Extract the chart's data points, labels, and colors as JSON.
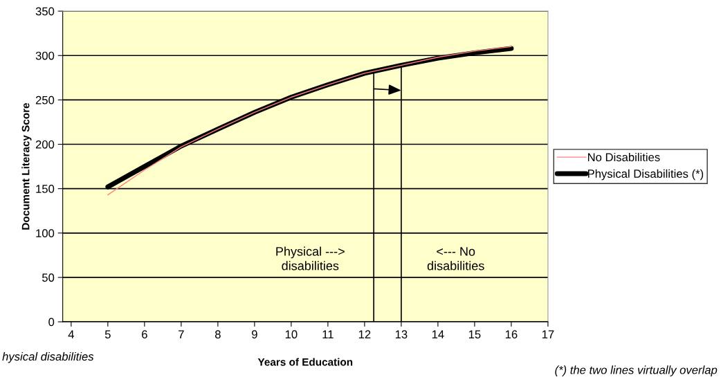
{
  "chart_data": {
    "type": "line",
    "xlabel": "Years of Education",
    "ylabel": "Document Literacy Score",
    "x": [
      5,
      6,
      7,
      8,
      9,
      10,
      11,
      12,
      13,
      14,
      15,
      16
    ],
    "series": [
      {
        "name": "No Disabilities",
        "color": "#ff8080",
        "values": [
          143,
          171,
          197,
          217,
          236,
          253,
          267,
          280,
          289,
          298,
          305,
          310
        ]
      },
      {
        "name": "Physical Disabilities (*)",
        "color": "#000000",
        "values": [
          152,
          175,
          198,
          217,
          236,
          253,
          267,
          280,
          289,
          297,
          303,
          308
        ]
      }
    ],
    "ref_lines": [
      {
        "axis": "x",
        "value": 12.25,
        "color": "#000000"
      },
      {
        "axis": "x",
        "value": 13,
        "color": "#000000"
      }
    ],
    "xlim": [
      3.77,
      17
    ],
    "xticks": [
      4,
      5,
      6,
      7,
      8,
      9,
      10,
      11,
      12,
      13,
      14,
      15,
      16,
      17
    ],
    "ylim": [
      0,
      350
    ],
    "yticks": [
      0,
      50,
      100,
      150,
      200,
      250,
      300,
      350
    ],
    "grid": "y",
    "legend": "right",
    "marker": "none",
    "annotations": [
      "Physical --->\ndisabilities",
      "<--- No\ndisabilities",
      "hysical disabilities",
      "(*) the two lines virtually overlap"
    ]
  }
}
